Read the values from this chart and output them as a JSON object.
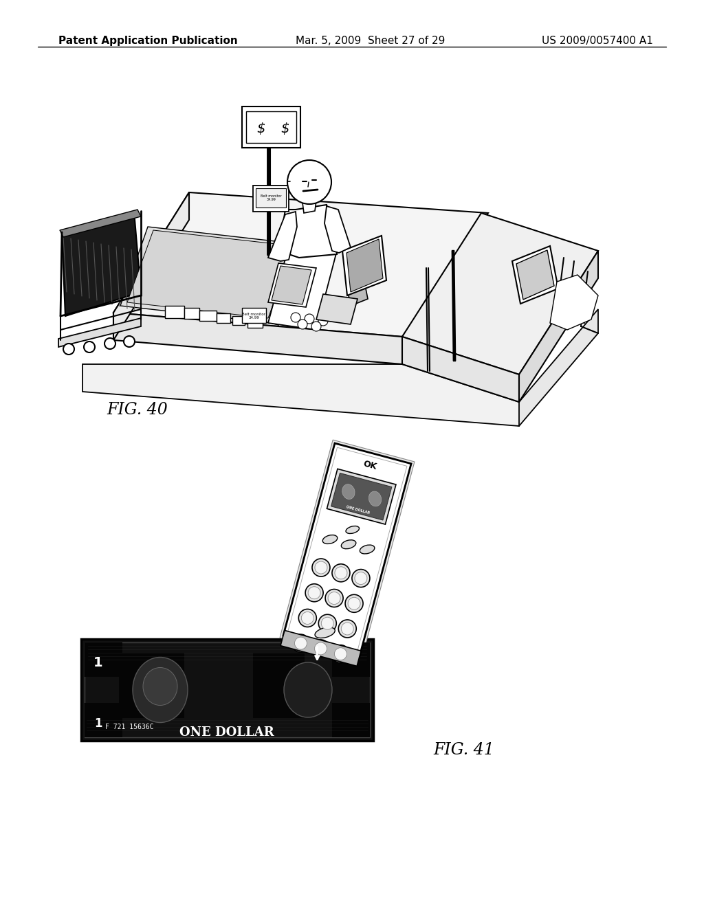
{
  "header_left": "Patent Application Publication",
  "header_mid": "Mar. 5, 2009  Sheet 27 of 29",
  "header_right": "US 2009/0057400 A1",
  "fig40_label": "FIG. 40",
  "fig41_label": "FIG. 41",
  "bg_color": "#ffffff",
  "line_color": "#000000",
  "header_fontsize": 11,
  "fig_label_fontsize": 16
}
